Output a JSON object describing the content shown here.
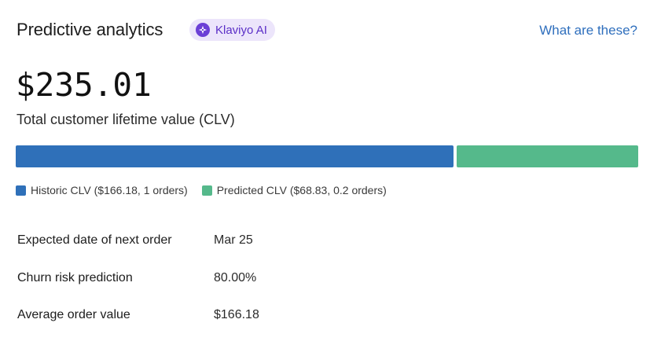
{
  "header": {
    "title": "Predictive analytics",
    "badge_label": "Klaviyo AI",
    "badge_icon": "klaviyo-ai-sparkle-icon",
    "help_link": "What are these?"
  },
  "clv": {
    "total_value": "$235.01",
    "total_label": "Total customer lifetime value (CLV)",
    "historic": {
      "legend": "Historic CLV ($166.18, 1 orders)",
      "amount": 166.18,
      "color": "#2f70b9"
    },
    "predicted": {
      "legend": "Predicted CLV ($68.83, 0.2 orders)",
      "amount": 68.83,
      "color": "#55b98b"
    }
  },
  "metrics": [
    {
      "label": "Expected date of next order",
      "value": "Mar 25"
    },
    {
      "label": "Churn risk prediction",
      "value": "80.00%"
    },
    {
      "label": "Average order value",
      "value": "$166.18"
    }
  ],
  "colors": {
    "accent_purple": "#6b3fd6",
    "badge_bg": "#ece5fb",
    "link_blue": "#2f6fbd"
  }
}
